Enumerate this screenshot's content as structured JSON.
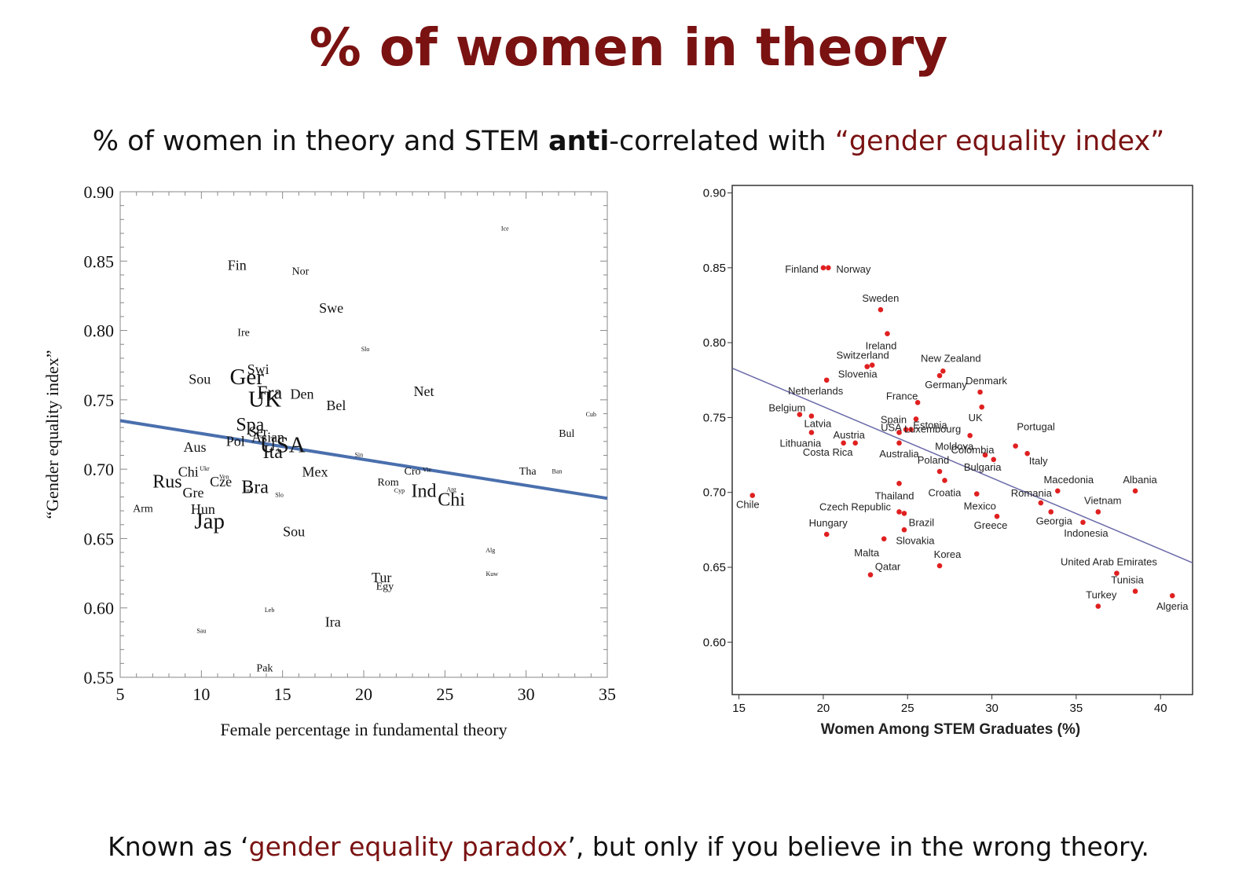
{
  "slide": {
    "title": "% of women in theory",
    "subtitle": {
      "pre": "% of women in theory and STEM ",
      "bold": "anti",
      "mid": "-correlated with ",
      "quoted": "“gender equality index”"
    },
    "footer": {
      "pre": "Known as ‘",
      "highlight": "gender equality paradox",
      "post": "’, but only if you believe in the wrong theory."
    }
  },
  "colors": {
    "title": "#7a1212",
    "trend_left": "#4a6fad",
    "trend_right": "#6a6aa8",
    "point_right": "#e02020"
  },
  "chart_data": [
    {
      "type": "scatter",
      "title": "",
      "xlabel": "Female percentage in fundamental theory",
      "ylabel": "“Gender equality index”",
      "xlim": [
        5,
        35
      ],
      "ylim": [
        0.55,
        0.9
      ],
      "xticks": [
        "5",
        "10",
        "15",
        "20",
        "25",
        "30",
        "35"
      ],
      "yticks": [
        "0.55",
        "0.60",
        "0.65",
        "0.70",
        "0.75",
        "0.80",
        "0.85",
        "0.90"
      ],
      "trendline": [
        [
          5,
          0.735
        ],
        [
          35,
          0.679
        ]
      ],
      "points": [
        {
          "label": "Fin",
          "x": 12.2,
          "y": 0.846,
          "size": "m"
        },
        {
          "label": "Nor",
          "x": 16.1,
          "y": 0.842,
          "size": "s"
        },
        {
          "label": "Ice",
          "x": 28.7,
          "y": 0.873,
          "size": "xs"
        },
        {
          "label": "Swe",
          "x": 18.0,
          "y": 0.815,
          "size": "m"
        },
        {
          "label": "Ire",
          "x": 12.6,
          "y": 0.798,
          "size": "s"
        },
        {
          "label": "Slo",
          "x": 20.1,
          "y": 0.786,
          "size": "xs"
        },
        {
          "label": "Swi",
          "x": 13.5,
          "y": 0.771,
          "size": "m"
        },
        {
          "label": "Sou",
          "x": 9.9,
          "y": 0.764,
          "size": "m"
        },
        {
          "label": "Ger",
          "x": 12.8,
          "y": 0.765,
          "size": "xl"
        },
        {
          "label": "Fra",
          "x": 14.2,
          "y": 0.754,
          "size": "l"
        },
        {
          "label": "UK",
          "x": 13.9,
          "y": 0.749,
          "size": "xl"
        },
        {
          "label": "Den",
          "x": 16.2,
          "y": 0.753,
          "size": "m"
        },
        {
          "label": "Net",
          "x": 23.7,
          "y": 0.755,
          "size": "m"
        },
        {
          "label": "Bel",
          "x": 18.3,
          "y": 0.745,
          "size": "m"
        },
        {
          "label": "Cub",
          "x": 34.0,
          "y": 0.739,
          "size": "xs"
        },
        {
          "label": "Spa",
          "x": 13.0,
          "y": 0.731,
          "size": "l"
        },
        {
          "label": "Ser",
          "x": 13.5,
          "y": 0.726,
          "size": "m"
        },
        {
          "label": "Asian",
          "x": 14.1,
          "y": 0.722,
          "size": "m"
        },
        {
          "label": "Pol",
          "x": 12.1,
          "y": 0.719,
          "size": "m"
        },
        {
          "label": "Ita",
          "x": 14.4,
          "y": 0.711,
          "size": "l"
        },
        {
          "label": "USA",
          "x": 15.0,
          "y": 0.716,
          "size": "xl"
        },
        {
          "label": "Bul",
          "x": 32.5,
          "y": 0.725,
          "size": "s"
        },
        {
          "label": "Aus",
          "x": 9.6,
          "y": 0.715,
          "size": "m"
        },
        {
          "label": "Sin",
          "x": 19.7,
          "y": 0.71,
          "size": "xs"
        },
        {
          "label": "Mex",
          "x": 17.0,
          "y": 0.697,
          "size": "m"
        },
        {
          "label": "Chi",
          "x": 9.2,
          "y": 0.697,
          "size": "m"
        },
        {
          "label": "Ukr",
          "x": 10.2,
          "y": 0.7,
          "size": "xs"
        },
        {
          "label": "Rus",
          "x": 7.9,
          "y": 0.69,
          "size": "l"
        },
        {
          "label": "Cze",
          "x": 11.2,
          "y": 0.69,
          "size": "m"
        },
        {
          "label": "Ven",
          "x": 11.4,
          "y": 0.694,
          "size": "xs"
        },
        {
          "label": "Bra",
          "x": 13.3,
          "y": 0.686,
          "size": "l"
        },
        {
          "label": "Ind",
          "x": 12.9,
          "y": 0.684,
          "size": "xs"
        },
        {
          "label": "Slo",
          "x": 14.8,
          "y": 0.681,
          "size": "xs"
        },
        {
          "label": "Cro",
          "x": 23.0,
          "y": 0.698,
          "size": "s"
        },
        {
          "label": "Vie",
          "x": 23.9,
          "y": 0.699,
          "size": "xs"
        },
        {
          "label": "Tha",
          "x": 30.1,
          "y": 0.698,
          "size": "s"
        },
        {
          "label": "Ban",
          "x": 31.9,
          "y": 0.698,
          "size": "xs"
        },
        {
          "label": "Rom",
          "x": 21.5,
          "y": 0.69,
          "size": "s"
        },
        {
          "label": "Cyp",
          "x": 22.2,
          "y": 0.684,
          "size": "xs"
        },
        {
          "label": "Ind",
          "x": 23.7,
          "y": 0.683,
          "size": "l"
        },
        {
          "label": "Chi",
          "x": 25.4,
          "y": 0.677,
          "size": "l"
        },
        {
          "label": "Arg",
          "x": 25.4,
          "y": 0.685,
          "size": "xs"
        },
        {
          "label": "Gre",
          "x": 9.5,
          "y": 0.682,
          "size": "m"
        },
        {
          "label": "Arm",
          "x": 6.4,
          "y": 0.671,
          "size": "s"
        },
        {
          "label": "Hun",
          "x": 10.1,
          "y": 0.67,
          "size": "m"
        },
        {
          "label": "Jap",
          "x": 10.5,
          "y": 0.661,
          "size": "xl"
        },
        {
          "label": "Sou",
          "x": 15.7,
          "y": 0.654,
          "size": "m"
        },
        {
          "label": "Alg",
          "x": 27.8,
          "y": 0.641,
          "size": "xs"
        },
        {
          "label": "Kuw",
          "x": 27.9,
          "y": 0.624,
          "size": "xs"
        },
        {
          "label": "Tur",
          "x": 21.1,
          "y": 0.621,
          "size": "m"
        },
        {
          "label": "Egy",
          "x": 21.3,
          "y": 0.615,
          "size": "s"
        },
        {
          "label": "Leb",
          "x": 14.2,
          "y": 0.598,
          "size": "xs"
        },
        {
          "label": "Ira",
          "x": 18.1,
          "y": 0.589,
          "size": "m"
        },
        {
          "label": "Sau",
          "x": 10.0,
          "y": 0.583,
          "size": "xs"
        },
        {
          "label": "Pak",
          "x": 13.9,
          "y": 0.556,
          "size": "s"
        }
      ]
    },
    {
      "type": "scatter",
      "title": "",
      "xlabel": "Women Among STEM Graduates (%)",
      "ylabel": "",
      "xlim": [
        14.6,
        41.9
      ],
      "ylim": [
        0.565,
        0.905
      ],
      "xticks": [
        "15",
        "20",
        "25",
        "30",
        "35",
        "40"
      ],
      "yticks": [
        "0.60",
        "0.65",
        "0.70",
        "0.75",
        "0.80",
        "0.85",
        "0.90"
      ],
      "trendline": [
        [
          14.6,
          0.783
        ],
        [
          41.9,
          0.653
        ]
      ],
      "points": [
        {
          "label": "Finland",
          "x": 20.0,
          "y": 0.85
        },
        {
          "label": "Norway",
          "x": 20.3,
          "y": 0.85
        },
        {
          "label": "Sweden",
          "x": 23.4,
          "y": 0.822
        },
        {
          "label": "Ireland",
          "x": 23.8,
          "y": 0.806
        },
        {
          "label": "Switzerland",
          "x": 22.9,
          "y": 0.785
        },
        {
          "label": "Slovenia",
          "x": 22.6,
          "y": 0.784
        },
        {
          "label": "New Zealand",
          "x": 27.1,
          "y": 0.781
        },
        {
          "label": "Germany",
          "x": 26.9,
          "y": 0.778
        },
        {
          "label": "Netherlands",
          "x": 20.2,
          "y": 0.775
        },
        {
          "label": "Denmark",
          "x": 29.3,
          "y": 0.767
        },
        {
          "label": "France",
          "x": 25.6,
          "y": 0.76
        },
        {
          "label": "UK",
          "x": 29.4,
          "y": 0.757
        },
        {
          "label": "Belgium",
          "x": 18.6,
          "y": 0.752
        },
        {
          "label": "Latvia",
          "x": 19.3,
          "y": 0.751
        },
        {
          "label": "Estonia",
          "x": 25.5,
          "y": 0.749
        },
        {
          "label": "Spain",
          "x": 25.2,
          "y": 0.742
        },
        {
          "label": "Luxembourg",
          "x": 24.9,
          "y": 0.742
        },
        {
          "label": "USA",
          "x": 24.5,
          "y": 0.74
        },
        {
          "label": "Lithuania",
          "x": 19.3,
          "y": 0.74
        },
        {
          "label": "Moldova",
          "x": 28.7,
          "y": 0.738
        },
        {
          "label": "Austria",
          "x": 21.9,
          "y": 0.733
        },
        {
          "label": "Costa Rica",
          "x": 21.2,
          "y": 0.733
        },
        {
          "label": "Australia",
          "x": 24.5,
          "y": 0.733
        },
        {
          "label": "Portugal",
          "x": 31.4,
          "y": 0.731
        },
        {
          "label": "Colombia",
          "x": 29.6,
          "y": 0.725
        },
        {
          "label": "Italy",
          "x": 32.1,
          "y": 0.726
        },
        {
          "label": "Bulgaria",
          "x": 30.1,
          "y": 0.722
        },
        {
          "label": "Poland",
          "x": 26.9,
          "y": 0.714
        },
        {
          "label": "Croatia",
          "x": 27.2,
          "y": 0.708
        },
        {
          "label": "Thailand",
          "x": 24.5,
          "y": 0.706
        },
        {
          "label": "Macedonia",
          "x": 33.9,
          "y": 0.701
        },
        {
          "label": "Albania",
          "x": 38.5,
          "y": 0.701
        },
        {
          "label": "Chile",
          "x": 15.8,
          "y": 0.698
        },
        {
          "label": "Romania",
          "x": 32.9,
          "y": 0.693
        },
        {
          "label": "Mexico",
          "x": 29.1,
          "y": 0.699
        },
        {
          "label": "Czech Republic",
          "x": 24.5,
          "y": 0.687
        },
        {
          "label": "Vietnam",
          "x": 36.3,
          "y": 0.687
        },
        {
          "label": "Georgia",
          "x": 33.5,
          "y": 0.687
        },
        {
          "label": "Brazil",
          "x": 24.8,
          "y": 0.686
        },
        {
          "label": "Greece",
          "x": 30.3,
          "y": 0.684
        },
        {
          "label": "Indonesia",
          "x": 35.4,
          "y": 0.68
        },
        {
          "label": "Slovakia",
          "x": 24.8,
          "y": 0.675
        },
        {
          "label": "Hungary",
          "x": 20.2,
          "y": 0.672
        },
        {
          "label": "Malta",
          "x": 23.6,
          "y": 0.669
        },
        {
          "label": "Korea",
          "x": 26.9,
          "y": 0.651
        },
        {
          "label": "United Arab Emirates",
          "x": 37.4,
          "y": 0.646
        },
        {
          "label": "Qatar",
          "x": 22.8,
          "y": 0.645
        },
        {
          "label": "Tunisia",
          "x": 38.5,
          "y": 0.634
        },
        {
          "label": "Algeria",
          "x": 40.7,
          "y": 0.631
        },
        {
          "label": "Turkey",
          "x": 36.3,
          "y": 0.624
        }
      ]
    }
  ]
}
